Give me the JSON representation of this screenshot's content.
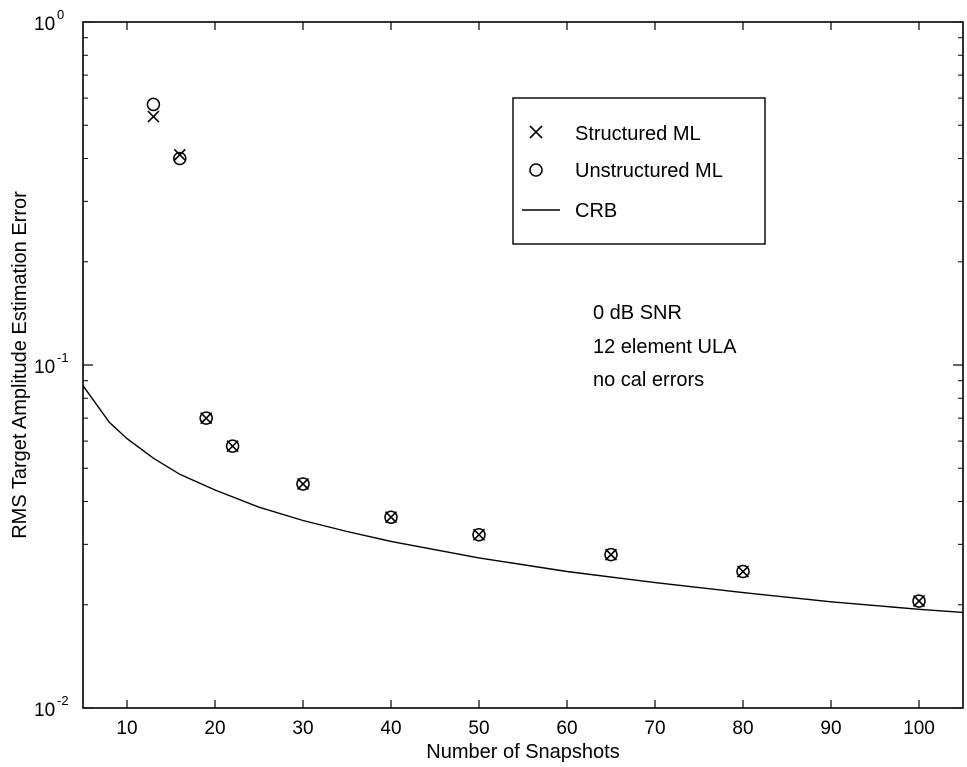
{
  "chart_data": {
    "type": "scatter",
    "xlabel": "Number of Snapshots",
    "ylabel": "RMS Target Amplitude Estimation Error",
    "xlim": [
      5,
      105
    ],
    "ylim": [
      0.01,
      1
    ],
    "yscale": "log",
    "grid": false,
    "legend_position": "top-right",
    "x_ticks": [
      {
        "value": 10,
        "label": "10"
      },
      {
        "value": 20,
        "label": "20"
      },
      {
        "value": 30,
        "label": "30"
      },
      {
        "value": 40,
        "label": "40"
      },
      {
        "value": 50,
        "label": "50"
      },
      {
        "value": 60,
        "label": "60"
      },
      {
        "value": 70,
        "label": "70"
      },
      {
        "value": 80,
        "label": "80"
      },
      {
        "value": 90,
        "label": "90"
      },
      {
        "value": 100,
        "label": "100"
      }
    ],
    "y_ticks": [
      {
        "value": 0.01,
        "base": "10",
        "exp": "-2"
      },
      {
        "value": 0.1,
        "base": "10",
        "exp": "-1"
      },
      {
        "value": 1,
        "base": "10",
        "exp": "0"
      }
    ],
    "series": [
      {
        "name": "Structured ML",
        "marker": "x",
        "x": [
          13,
          16,
          19,
          22,
          30,
          40,
          50,
          65,
          80,
          100
        ],
        "y": [
          0.53,
          0.41,
          0.07,
          0.058,
          0.045,
          0.036,
          0.032,
          0.028,
          0.025,
          0.0205
        ]
      },
      {
        "name": "Unstructured ML",
        "marker": "o",
        "x": [
          13,
          16,
          19,
          22,
          30,
          40,
          50,
          65,
          80,
          100
        ],
        "y": [
          0.575,
          0.4,
          0.07,
          0.058,
          0.045,
          0.036,
          0.032,
          0.028,
          0.025,
          0.0205
        ]
      },
      {
        "name": "CRB",
        "marker": "line",
        "x": [
          5,
          8,
          10,
          13,
          16,
          20,
          25,
          30,
          35,
          40,
          50,
          60,
          70,
          80,
          90,
          100,
          105
        ],
        "y": [
          0.087,
          0.068,
          0.061,
          0.0535,
          0.048,
          0.0432,
          0.0385,
          0.0352,
          0.0327,
          0.0306,
          0.0274,
          0.025,
          0.0232,
          0.0217,
          0.0204,
          0.0194,
          0.019
        ]
      }
    ],
    "annotations": [
      "0 dB SNR",
      "12 element ULA",
      "no cal errors"
    ]
  }
}
